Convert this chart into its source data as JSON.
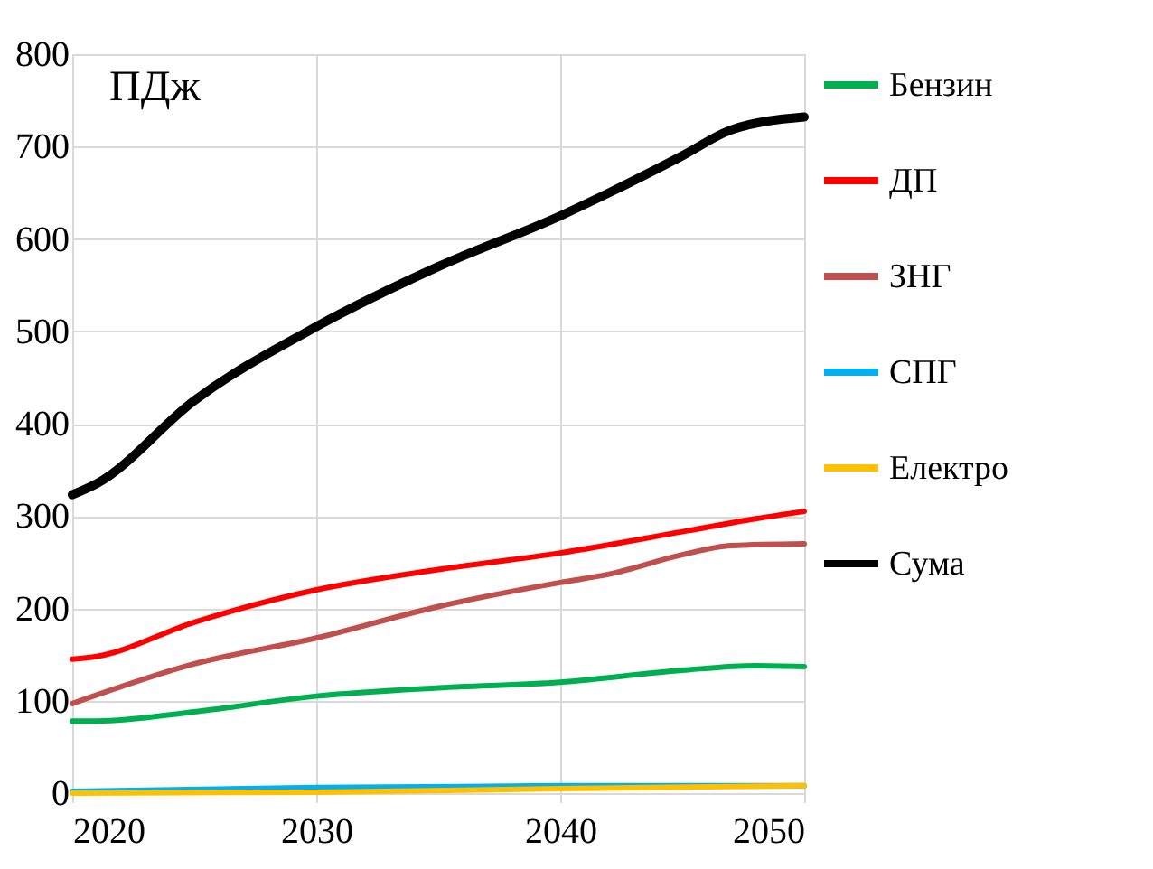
{
  "chart_data": {
    "type": "line",
    "ylabel": "ПДж",
    "xlim": [
      2020,
      2050
    ],
    "xticks": [
      2020,
      2030,
      2040,
      2050
    ],
    "ylim": [
      0,
      800
    ],
    "yticks": [
      0,
      100,
      200,
      300,
      400,
      500,
      600,
      700,
      800
    ],
    "grid": true,
    "legend": "right",
    "marker": "none",
    "line_style": "solid",
    "series": [
      {
        "name": "Бензин",
        "color": "#00b050",
        "x": [
          2020,
          2021,
          2025,
          2030,
          2035,
          2040,
          2045,
          2048,
          2050
        ],
        "values": [
          78,
          78,
          88,
          105,
          114,
          120,
          133,
          138,
          137
        ]
      },
      {
        "name": "ДП",
        "color": "#ff0000",
        "x": [
          2020,
          2021,
          2025,
          2030,
          2035,
          2040,
          2045,
          2048,
          2050
        ],
        "values": [
          145,
          148,
          185,
          220,
          242,
          260,
          283,
          297,
          305
        ]
      },
      {
        "name": "ЗНГ",
        "color": "#c0504d",
        "x": [
          2020,
          2025,
          2030,
          2035,
          2040,
          2042,
          2045,
          2047,
          2050
        ],
        "values": [
          97,
          140,
          168,
          202,
          228,
          237,
          258,
          268,
          270
        ]
      },
      {
        "name": "СПГ",
        "color": "#00b0f0",
        "x": [
          2020,
          2030,
          2040,
          2050
        ],
        "values": [
          2,
          6,
          8,
          8
        ]
      },
      {
        "name": "Електро",
        "color": "#ffc000",
        "x": [
          2020,
          2030,
          2040,
          2050
        ],
        "values": [
          0,
          1,
          5,
          8
        ]
      },
      {
        "name": "Сума",
        "color": "#000000",
        "x": [
          2020,
          2021,
          2025,
          2030,
          2035,
          2040,
          2042,
          2045,
          2047,
          2050
        ],
        "values": [
          323,
          335,
          425,
          505,
          570,
          625,
          650,
          690,
          718,
          732
        ]
      }
    ]
  }
}
